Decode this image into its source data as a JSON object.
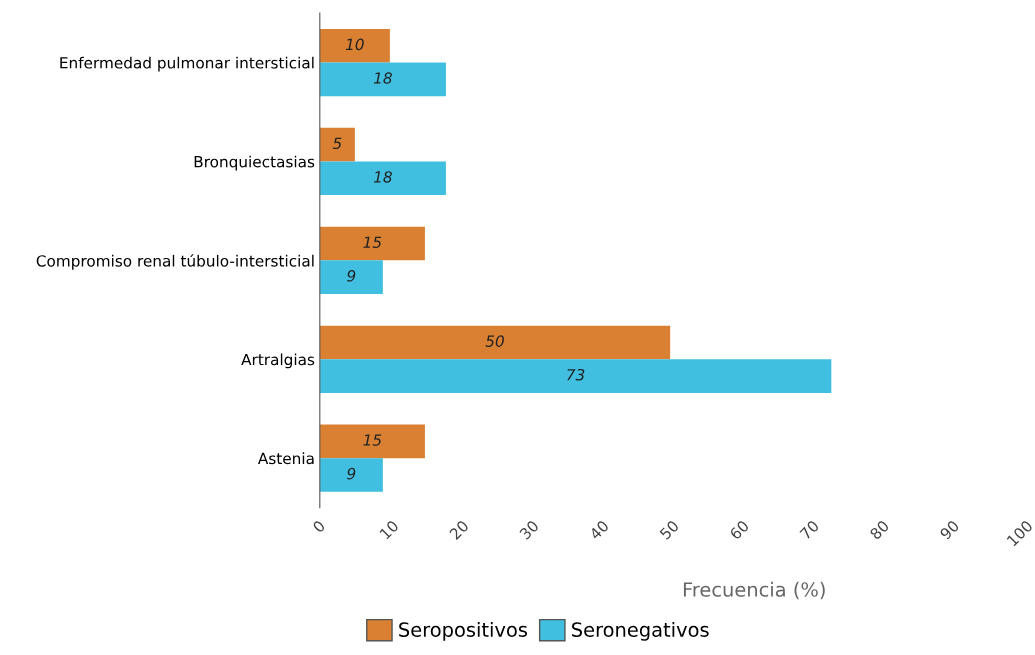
{
  "chart_data": {
    "type": "bar",
    "orientation": "horizontal",
    "xlabel": "Frecuencia (%)",
    "categories": [
      "Enfermedad pulmonar intersticial",
      "Bronquiectasias",
      "Compromiso renal túbulo-intersticial",
      "Artralgias",
      "Astenia"
    ],
    "series": [
      {
        "name": "Seropositivos",
        "color": "#d98032",
        "values": [
          10,
          5,
          15,
          50,
          15
        ]
      },
      {
        "name": "Seronegativos",
        "color": "#40bfe0",
        "values": [
          18,
          18,
          9,
          73,
          9
        ]
      }
    ],
    "xlim": [
      0,
      100
    ],
    "xticks": [
      0,
      10,
      20,
      30,
      40,
      50,
      60,
      70,
      80,
      90,
      100
    ],
    "data_labels": true,
    "grid": false,
    "legend": "bottom"
  }
}
